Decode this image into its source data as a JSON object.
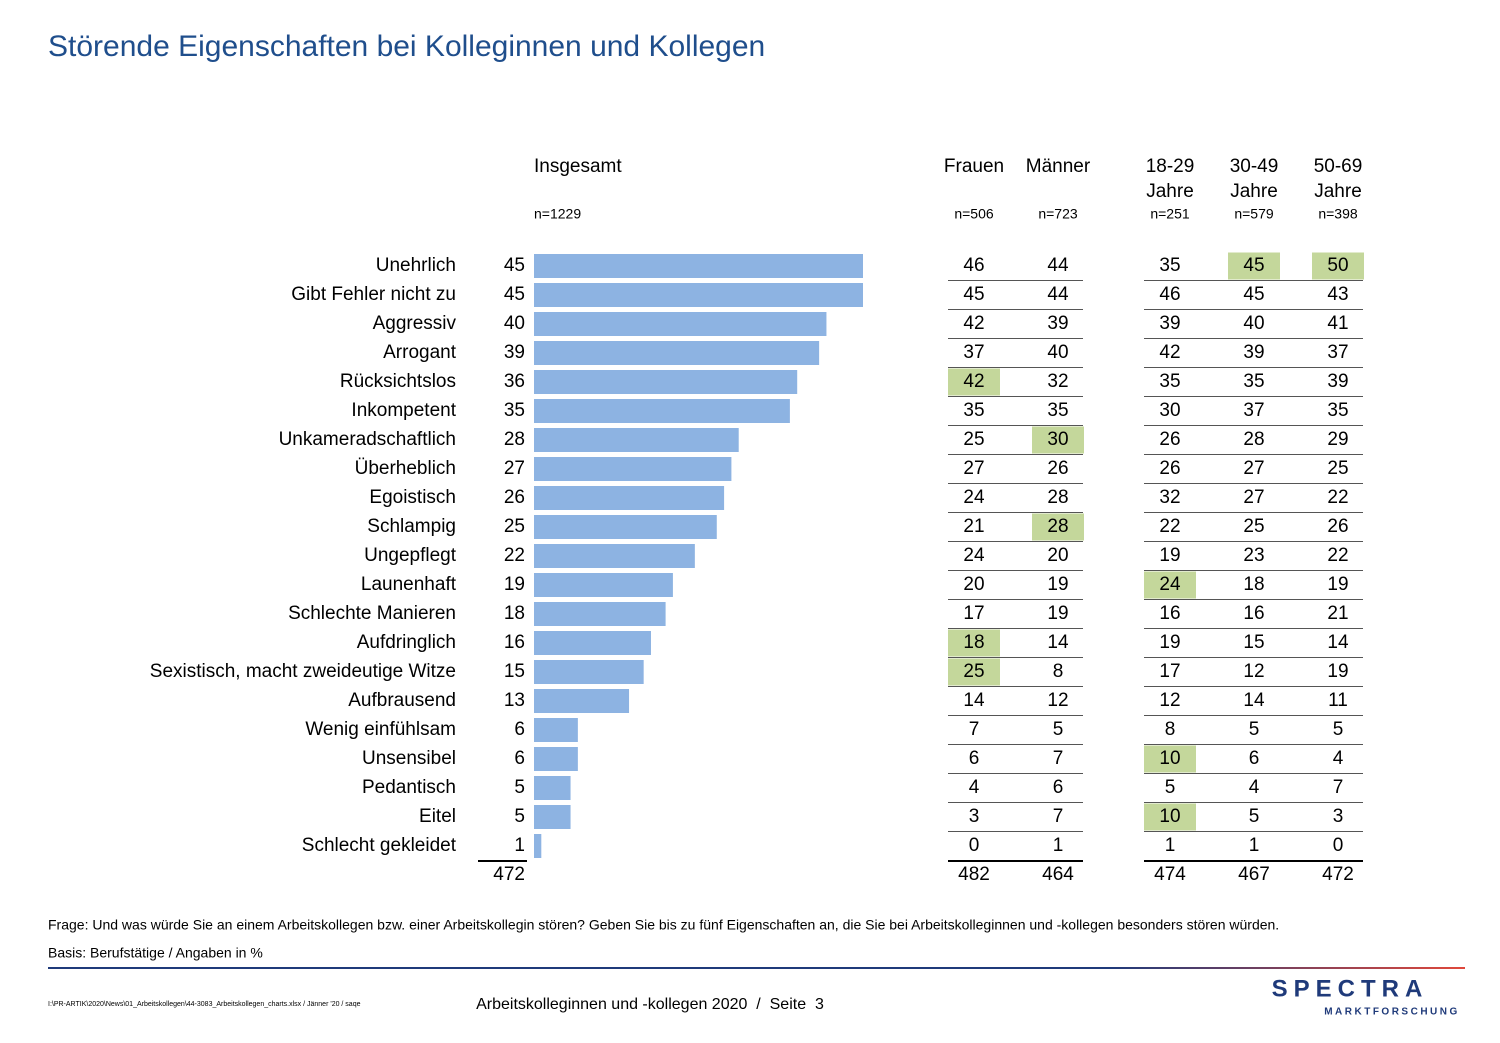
{
  "title": "Störende Eigenschaften bei Kolleginnen und Kollegen",
  "chart_data": {
    "type": "bar",
    "orientation": "horizontal",
    "header": "Insgesamt",
    "n": "n=1229",
    "categories": [
      "Unehrlich",
      "Gibt Fehler nicht zu",
      "Aggressiv",
      "Arrogant",
      "Rücksichtslos",
      "Inkompetent",
      "Unkameradschaftlich",
      "Überheblich",
      "Egoistisch",
      "Schlampig",
      "Ungepflegt",
      "Launenhaft",
      "Schlechte Manieren",
      "Aufdringlich",
      "Sexistisch, macht zweideutige Witze",
      "Aufbrausend",
      "Wenig einfühlsam",
      "Unsensibel",
      "Pedantisch",
      "Eitel",
      "Schlecht gekleidet"
    ],
    "values": [
      45,
      45,
      40,
      39,
      36,
      35,
      28,
      27,
      26,
      25,
      22,
      19,
      18,
      16,
      15,
      13,
      6,
      6,
      5,
      5,
      1
    ],
    "total": 472,
    "color": "#8db3e2"
  },
  "table": {
    "highlight_color": "#c4d79b",
    "groups": [
      {
        "columns": [
          {
            "header": [
              "Frauen"
            ],
            "n": "n=506",
            "values": [
              46,
              45,
              42,
              37,
              42,
              35,
              25,
              27,
              24,
              21,
              24,
              20,
              17,
              18,
              25,
              14,
              7,
              6,
              4,
              3,
              0
            ],
            "total": 482,
            "highlighted": [
              4,
              13,
              14
            ]
          },
          {
            "header": [
              "Männer"
            ],
            "n": "n=723",
            "values": [
              44,
              44,
              39,
              40,
              32,
              35,
              30,
              26,
              28,
              28,
              20,
              19,
              19,
              14,
              8,
              12,
              5,
              7,
              6,
              7,
              1
            ],
            "total": 464,
            "highlighted": [
              6,
              9
            ]
          }
        ]
      },
      {
        "columns": [
          {
            "header": [
              "18-29",
              "Jahre"
            ],
            "n": "n=251",
            "values": [
              35,
              46,
              39,
              42,
              35,
              30,
              26,
              26,
              32,
              22,
              19,
              24,
              16,
              19,
              17,
              12,
              8,
              10,
              5,
              10,
              1
            ],
            "total": 474,
            "highlighted": [
              11,
              17,
              19
            ]
          },
          {
            "header": [
              "30-49",
              "Jahre"
            ],
            "n": "n=579",
            "values": [
              45,
              45,
              40,
              39,
              35,
              37,
              28,
              27,
              27,
              25,
              23,
              18,
              16,
              15,
              12,
              14,
              5,
              6,
              4,
              5,
              1
            ],
            "total": 467,
            "highlighted": [
              0
            ]
          },
          {
            "header": [
              "50-69",
              "Jahre"
            ],
            "n": "n=398",
            "values": [
              50,
              43,
              41,
              37,
              39,
              35,
              29,
              25,
              22,
              26,
              22,
              19,
              21,
              14,
              19,
              11,
              5,
              4,
              7,
              3,
              0
            ],
            "total": 472,
            "highlighted": [
              0
            ]
          }
        ]
      }
    ]
  },
  "footer": {
    "question": "Frage: Und was würde Sie an einem Arbeitskollegen bzw. einer Arbeitskollegin stören? Geben Sie bis zu fünf Eigenschaften an, die Sie bei Arbeitskolleginnen und -kollegen besonders stören würden.",
    "basis": "Basis: Berufstätige / Angaben in %",
    "path": "I:\\PR-ARTIK\\2020\\News\\01_Arbeitskollegen\\44-3083_Arbeitskollegen_charts.xlsx / Jänner '20 / saqe",
    "page": "Arbeitskolleginnen und -kollegen 2020  /  Seite  3",
    "logo": "SPECTRA",
    "logo_sub": "MARKTFORSCHUNG"
  }
}
